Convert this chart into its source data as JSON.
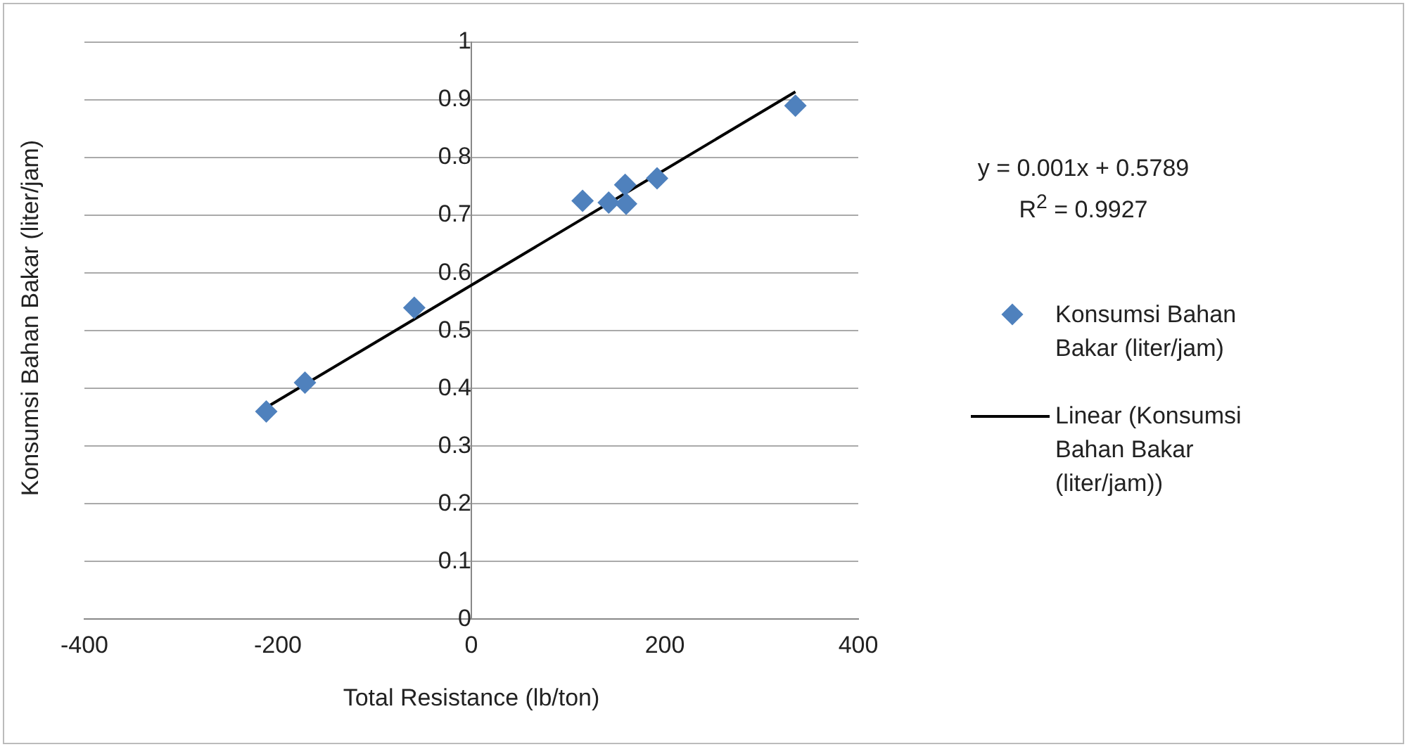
{
  "chart_data": {
    "type": "scatter",
    "xlabel": "Total Resistance (lb/ton)",
    "ylabel": "Konsumsi Bahan Bakar (liter/jam)",
    "series": [
      {
        "name": "Konsumsi Bahan Bakar (liter/jam)",
        "color": "#4f81bd",
        "x": [
          -212,
          -172,
          -59,
          115,
          142,
          159,
          160,
          192,
          335
        ],
        "values": [
          0.36,
          0.41,
          0.54,
          0.725,
          0.722,
          0.753,
          0.72,
          0.764,
          0.89
        ]
      },
      {
        "name": "Linear (Konsumsi Bahan Bakar (liter/jam))",
        "type": "line",
        "color": "#000000",
        "x": [
          -212,
          335
        ],
        "values": [
          0.367,
          0.914
        ],
        "marker": "none"
      }
    ],
    "marker": "diamond",
    "xlim": [
      -400,
      400
    ],
    "xticks": [
      -400,
      -200,
      0,
      200,
      400
    ],
    "ylim": [
      0,
      1
    ],
    "yticks": [
      0,
      0.1,
      0.2,
      0.3,
      0.4,
      0.5,
      0.6,
      0.7,
      0.8,
      0.9,
      1
    ],
    "grid": "y",
    "legend": "right",
    "annotations": [
      "y = 0.001x + 0.5789\nR$^{2}$ = 0.9927"
    ]
  }
}
